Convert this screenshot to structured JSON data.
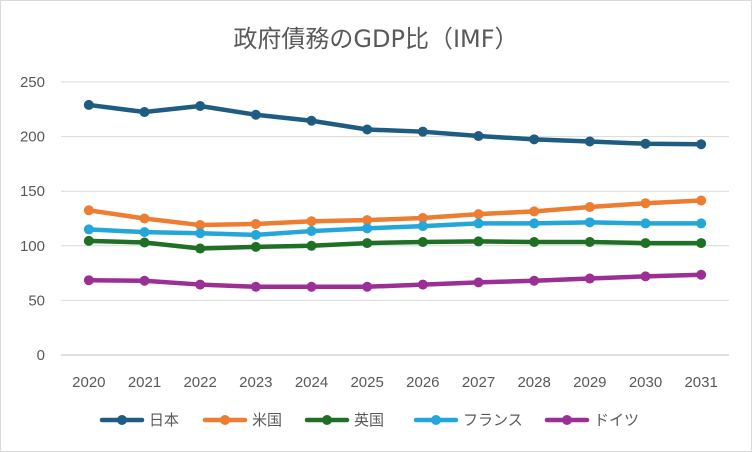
{
  "chart_data": {
    "type": "line",
    "title": "政府債務のGDP比（IMF）",
    "xlabel": "",
    "ylabel": "",
    "categories": [
      "2020",
      "2021",
      "2022",
      "2023",
      "2024",
      "2025",
      "2026",
      "2027",
      "2028",
      "2029",
      "2030",
      "2031"
    ],
    "y_ticks": [
      "0",
      "50",
      "100",
      "150",
      "200",
      "250"
    ],
    "ylim": [
      0,
      250
    ],
    "grid": true,
    "legend_position": "bottom",
    "series": [
      {
        "name": "日本",
        "color": "#1f5c82",
        "values": [
          229,
          222.5,
          228,
          220,
          214.5,
          206.5,
          204.5,
          200.5,
          197.5,
          195.5,
          193.5,
          193
        ]
      },
      {
        "name": "米国",
        "color": "#ed7d31",
        "values": [
          132.5,
          125,
          119,
          120,
          122.5,
          123.5,
          125.5,
          129,
          131.5,
          135.5,
          139,
          141.5
        ]
      },
      {
        "name": "英国",
        "color": "#1f6f24",
        "values": [
          104.5,
          103,
          97.5,
          99,
          100,
          102.5,
          103.5,
          104,
          103.5,
          103.5,
          102.5,
          102.5
        ]
      },
      {
        "name": "フランス",
        "color": "#23a6da",
        "values": [
          115,
          112.5,
          111.5,
          110,
          113.5,
          116,
          118,
          120.5,
          120.5,
          121.5,
          120.5,
          120.5
        ]
      },
      {
        "name": "ドイツ",
        "color": "#9c2f96",
        "values": [
          68.5,
          68,
          64.5,
          62.5,
          62.5,
          62.5,
          64.5,
          66.5,
          68,
          70,
          72,
          73.5
        ]
      }
    ]
  }
}
